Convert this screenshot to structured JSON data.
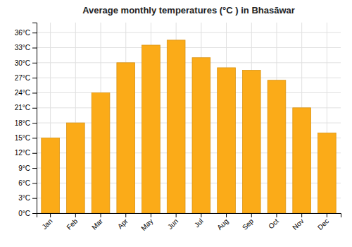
{
  "chart_data": {
    "type": "bar",
    "title": "Average monthly temperatures (°C ) in Bhasāwar",
    "categories": [
      "Jan",
      "Feb",
      "Mar",
      "Apr",
      "May",
      "Jun",
      "Jul",
      "Aug",
      "Sep",
      "Oct",
      "Nov",
      "Dec"
    ],
    "values": [
      15.0,
      18.0,
      24.0,
      30.0,
      33.5,
      34.5,
      31.0,
      29.0,
      28.5,
      26.5,
      21.0,
      16.0
    ],
    "color": "#FBAB18",
    "ylim": [
      0,
      38
    ],
    "yticks": [
      {
        "value": 0,
        "label": "0°C"
      },
      {
        "value": 3,
        "label": "3°C"
      },
      {
        "value": 6,
        "label": "6°C"
      },
      {
        "value": 9,
        "label": "9°C"
      },
      {
        "value": 12,
        "label": "12°C"
      },
      {
        "value": 15,
        "label": "15°C"
      },
      {
        "value": 18,
        "label": "18°C"
      },
      {
        "value": 21,
        "label": "21°C"
      },
      {
        "value": 24,
        "label": "24°C"
      },
      {
        "value": 27,
        "label": "27°C"
      },
      {
        "value": 30,
        "label": "30°C"
      },
      {
        "value": 33,
        "label": "33°C"
      },
      {
        "value": 36,
        "label": "36°C"
      }
    ],
    "grid": true
  }
}
